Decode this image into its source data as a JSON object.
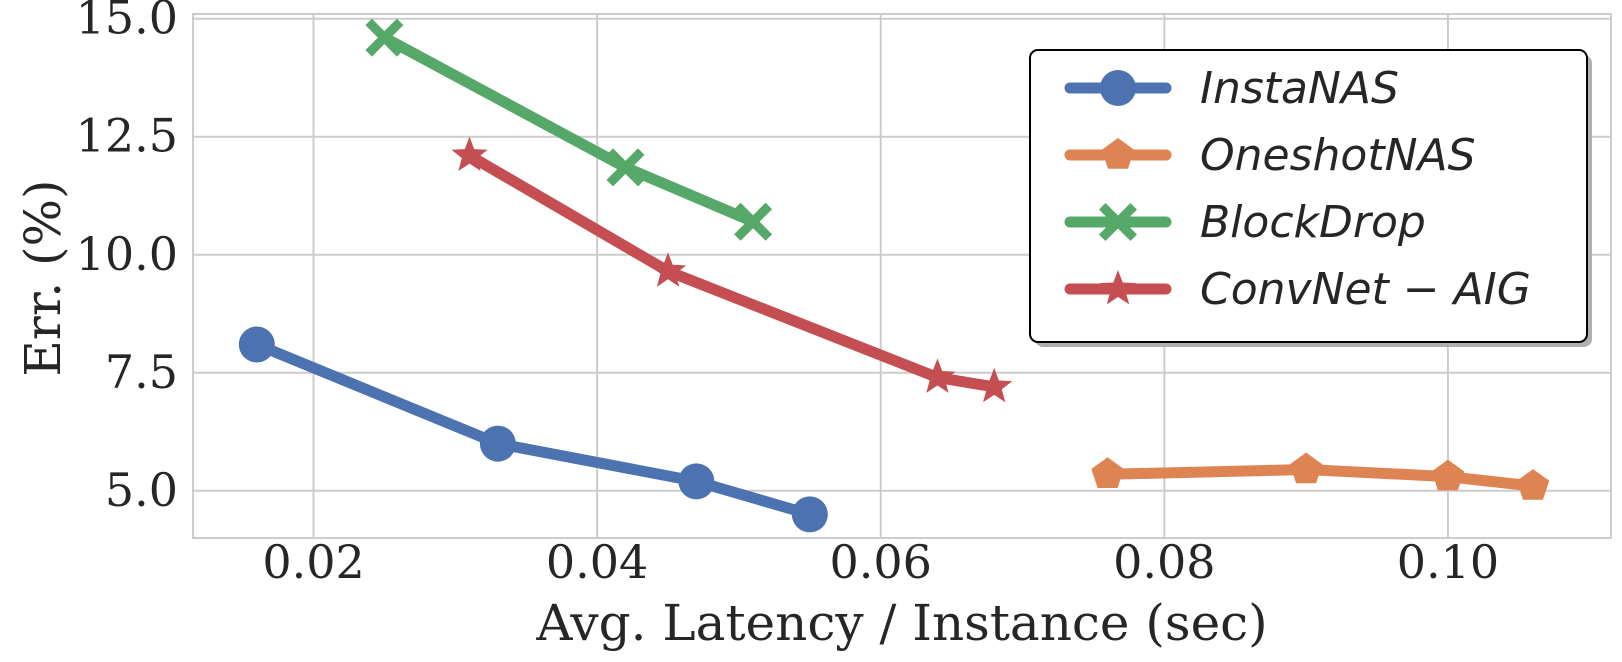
{
  "chart_data": {
    "type": "line",
    "xlabel": "Avg. Latency / Instance (sec)",
    "ylabel": "Err. (%)",
    "xlim": [
      0.0115,
      0.1115
    ],
    "ylim": [
      4.0,
      15.1
    ],
    "xticks": [
      0.02,
      0.04,
      0.06,
      0.08,
      0.1
    ],
    "xtick_labels": [
      "0.02",
      "0.04",
      "0.06",
      "0.08",
      "0.10"
    ],
    "yticks": [
      5.0,
      7.5,
      10.0,
      12.5,
      15.0
    ],
    "ytick_labels": [
      "5.0",
      "7.5",
      "10.0",
      "12.5",
      "15.0"
    ],
    "grid": true,
    "legend_position": "top-right",
    "series": [
      {
        "name": "InstaNAS",
        "legend_label": "InstaNAS",
        "color": "#4c72b0",
        "marker": "circle",
        "x": [
          0.016,
          0.033,
          0.047,
          0.055
        ],
        "y": [
          8.1,
          6.0,
          5.2,
          4.5
        ]
      },
      {
        "name": "OneshotNAS",
        "legend_label": "OneshotNAS",
        "color": "#dd8452",
        "marker": "pentagon",
        "x": [
          0.076,
          0.09,
          0.1,
          0.106
        ],
        "y": [
          5.35,
          5.45,
          5.3,
          5.1
        ]
      },
      {
        "name": "BlockDrop",
        "legend_label": "BlockDrop",
        "color": "#55a868",
        "marker": "x",
        "x": [
          0.025,
          0.042,
          0.051
        ],
        "y": [
          14.6,
          11.85,
          10.7
        ]
      },
      {
        "name": "ConvNet-AIG",
        "legend_label": "ConvNet − AIG",
        "color": "#c44e52",
        "marker": "star",
        "x": [
          0.031,
          0.045,
          0.064,
          0.068
        ],
        "y": [
          12.1,
          9.65,
          7.4,
          7.2
        ]
      }
    ]
  }
}
